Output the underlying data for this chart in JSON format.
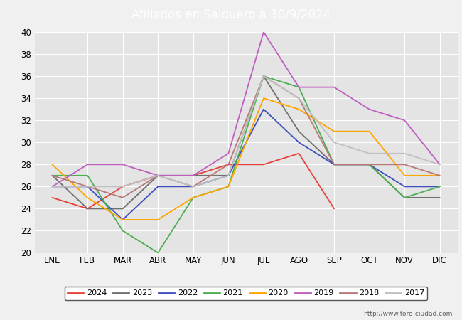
{
  "title": "Afiliados en Salduero a 30/9/2024",
  "title_color": "#ffffff",
  "title_bg_color": "#4472c4",
  "ylim": [
    20,
    40
  ],
  "yticks": [
    20,
    22,
    24,
    26,
    28,
    30,
    32,
    34,
    36,
    38,
    40
  ],
  "months": [
    "ENE",
    "FEB",
    "MAR",
    "ABR",
    "MAY",
    "JUN",
    "JUL",
    "AGO",
    "SEP",
    "OCT",
    "NOV",
    "DIC"
  ],
  "series": {
    "2024": {
      "color": "#e8413c",
      "data": [
        25,
        24,
        26,
        27,
        27,
        28,
        28,
        29,
        24,
        null,
        null,
        null
      ]
    },
    "2023": {
      "color": "#707070",
      "data": [
        27,
        24,
        24,
        27,
        27,
        27,
        36,
        31,
        28,
        28,
        25,
        25
      ]
    },
    "2022": {
      "color": "#3f4fbf",
      "data": [
        26,
        26,
        23,
        26,
        26,
        27,
        33,
        30,
        28,
        28,
        26,
        26
      ]
    },
    "2021": {
      "color": "#4caf50",
      "data": [
        27,
        27,
        22,
        20,
        25,
        26,
        36,
        35,
        28,
        28,
        25,
        26
      ]
    },
    "2020": {
      "color": "#ffa500",
      "data": [
        28,
        25,
        23,
        23,
        25,
        26,
        34,
        33,
        31,
        31,
        27,
        27
      ]
    },
    "2019": {
      "color": "#bf5fbf",
      "data": [
        26,
        28,
        28,
        27,
        27,
        29,
        40,
        35,
        35,
        33,
        32,
        28
      ]
    },
    "2018": {
      "color": "#b87878",
      "data": [
        27,
        26,
        25,
        27,
        26,
        28,
        36,
        34,
        28,
        28,
        28,
        27
      ]
    },
    "2017": {
      "color": "#c0c0c0",
      "data": [
        26,
        26,
        26,
        27,
        26,
        27,
        36,
        34,
        30,
        29,
        29,
        28
      ]
    }
  },
  "legend_order": [
    "2024",
    "2023",
    "2022",
    "2021",
    "2020",
    "2019",
    "2018",
    "2017"
  ],
  "bg_color": "#f0f0f0",
  "plot_bg_color": "#e4e4e4",
  "grid_color": "#ffffff",
  "watermark": "http://www.foro-ciudad.com"
}
